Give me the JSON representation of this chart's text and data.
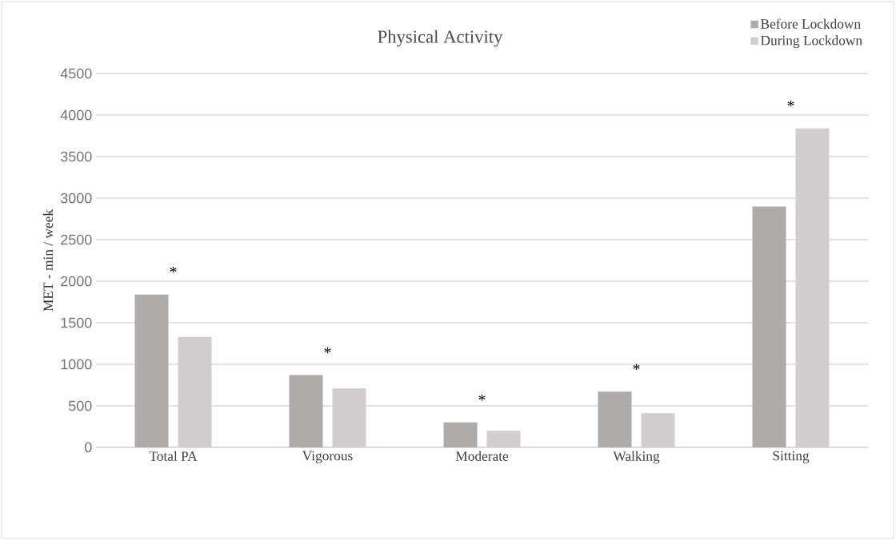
{
  "chart_data": {
    "type": "bar",
    "title": "Physical Activity",
    "ylabel": "MET - min / week",
    "categories": [
      "Total PA",
      "Vigorous",
      "Moderate",
      "Walking",
      "Sitting"
    ],
    "series": [
      {
        "name": "Before Lockdown",
        "color": "#aeabab",
        "values": [
          1840,
          870,
          300,
          670,
          2900
        ]
      },
      {
        "name": "During Lockdown",
        "color": "#d0cece",
        "values": [
          1330,
          710,
          200,
          410,
          3840
        ]
      }
    ],
    "ylim": [
      0,
      4500
    ],
    "yticks": [
      0,
      500,
      1000,
      1500,
      2000,
      2500,
      3000,
      3500,
      4000,
      4500
    ],
    "grid": "y",
    "legend": "top right",
    "annotations": [
      "*",
      "*",
      "*",
      "*",
      "*"
    ]
  }
}
